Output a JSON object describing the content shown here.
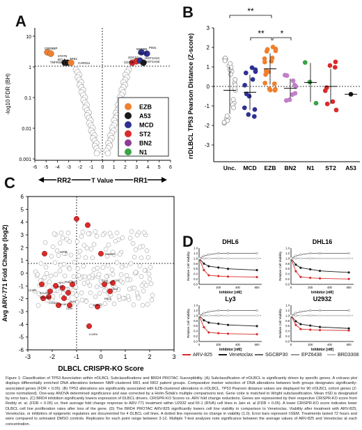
{
  "panels": {
    "A": {
      "label": "A",
      "ylabel": "-log10 FDR (BH)",
      "xlabel": "T Value",
      "ytick_labels": [
        "10",
        "1",
        "0.1",
        "0.01",
        "0.001"
      ],
      "xtick_labels": [
        "-6",
        "-5",
        "-4",
        "-3",
        "-2",
        "-1",
        "0",
        "1",
        "2",
        "3",
        "4",
        "5",
        "6"
      ],
      "arrow_left": "RR2",
      "arrow_right": "RR1",
      "gene_labels": [
        "CREBBP",
        "STAT6",
        "TNFRSF14",
        "BCL6",
        "TP53",
        "CARD11",
        "MYD88",
        "PIM1",
        "IGLL5",
        "SOCS1",
        "HIST1H1C",
        "HIST1H1E",
        "CD79B"
      ],
      "legend": [
        {
          "name": "EZB",
          "color": "#f07f2e"
        },
        {
          "name": "A53",
          "color": "#1a1a1a"
        },
        {
          "name": "MCD",
          "color": "#2e3192"
        },
        {
          "name": "ST2",
          "color": "#d92b2b"
        },
        {
          "name": "BN2",
          "color": "#8e3d96"
        },
        {
          "name": "N1",
          "color": "#3aa346"
        }
      ]
    },
    "B": {
      "label": "B",
      "ylabel": "rrDLBCL TP53 Pearson Distance (Z-score)",
      "ytick_labels": [
        "3",
        "2",
        "1",
        "0",
        "-1",
        "-2",
        "-3"
      ],
      "categories": [
        "Unc.",
        "MCD",
        "EZB",
        "BN2",
        "N1",
        "ST2",
        "A53"
      ],
      "sig1": "**",
      "sig2": "**",
      "sig3": "*"
    },
    "C": {
      "label": "C",
      "ylabel": "Avg ARV-771 Fold Change (log2)",
      "xlabel": "DLBCL CRISPR-KO Score",
      "ytick_labels": [
        "6",
        "5",
        "4",
        "3",
        "2",
        "1",
        "0",
        "-1",
        "-2",
        "-3",
        "-4",
        "-5",
        "-6"
      ],
      "xtick_labels": [
        "-3",
        "-2",
        "-1",
        "0",
        "1",
        "2",
        "3"
      ],
      "gene_labels": [
        "MTOR",
        "TCF3",
        "MYC",
        "PIM2",
        "CD79B",
        "IRF4",
        "POU2F2",
        "POU2AF1",
        "BLNK",
        "CD19",
        "CCND3",
        "PAX5",
        "IL10RA",
        "TOMM7A",
        "CD40",
        "IKZF1",
        "CD74",
        "IKZF3",
        "RELA",
        "BACH2"
      ]
    },
    "D": {
      "label": "D",
      "ylabel": "Relative Cell Viability",
      "xlabel": "Inhibitor [nM]",
      "subplots": [
        {
          "title": "DHL6"
        },
        {
          "title": "DHL16"
        },
        {
          "title": "Ly3"
        },
        {
          "title": "U2932"
        }
      ],
      "ytick_labels": [
        "1.4",
        "1.2",
        "1.0",
        "0.8",
        "0.6",
        "0.4",
        "0.2",
        "0.0"
      ],
      "xtick_labels": [
        "0",
        "200",
        "400",
        "600"
      ],
      "legend": [
        {
          "name": "ARV-825",
          "color": "#d92b2b"
        },
        {
          "name": "Venetoclax",
          "color": "#1a1a1a"
        },
        {
          "name": "SGCBP30",
          "color": "#666666"
        },
        {
          "name": "EPZ6438",
          "color": "#999999"
        },
        {
          "name": "BRD3308",
          "color": "#bbbbbb"
        }
      ]
    }
  },
  "chart_data": [
    {
      "type": "bar",
      "panel": "B",
      "categories": [
        "Unc.",
        "MCD",
        "EZB",
        "BN2",
        "N1",
        "ST2",
        "A53"
      ],
      "values": [
        -0.2,
        -0.3,
        0.9,
        -0.1,
        0.2,
        0.0,
        -0.4
      ],
      "ylim": [
        -3,
        3
      ],
      "ylabel": "rrDLBCL TP53 Pearson Distance (Z-score)"
    },
    {
      "type": "line",
      "panel": "D",
      "x": [
        0,
        50,
        100,
        200,
        300,
        600
      ],
      "series": [
        {
          "name": "ARV-825",
          "values": [
            1.0,
            0.55,
            0.35,
            0.32,
            0.3,
            0.28
          ]
        },
        {
          "name": "Venetoclax",
          "values": [
            1.0,
            0.8,
            0.7,
            0.65,
            0.6,
            0.55
          ]
        },
        {
          "name": "SGCBP30",
          "values": [
            1.0,
            1.1,
            1.15,
            1.2,
            1.2,
            1.2
          ]
        },
        {
          "name": "EPZ6438",
          "values": [
            1.0,
            1.0,
            1.0,
            1.0,
            1.0,
            1.0
          ]
        },
        {
          "name": "BRD3308",
          "values": [
            1.0,
            1.02,
            1.0,
            1.02,
            1.0,
            1.0
          ]
        }
      ],
      "ylim": [
        0,
        1.4
      ]
    }
  ],
  "caption": "Figure 1: Classification of TP53 Association within rrDLBCL Subclassifications and BRD4 PROTAC Susceptibility. (A) Subclassification of rrDLBCL is significantly driven by specific genes. A volcano plot displays differentially enriched DNA alterations between NMF-clustered RR1 and RR2 patient groups. Comparative marker selection of DNA alterations between both groups designates significantly-associated genes (FDR < 0.05). (B) TP53 alterations are significantly associated with EZB-clustered alterations in rrDLBCL. TP53 Pearson distance values are displayed for 90 rrDLBCL cohort genes (Z-score normalized). One-way ANOVA determined significance and was corrected by a Holm-Šídák's multiple comparisons test. Gene color is matched to Wright subclassification. Mean ±SD is designated by error bars. (C) BRD4 inhibition significantly lowers expression of DLBCL drivers. CRISPR-KO Scores vs. ARV fold change reductions. Genes are represented by their respective CRISPR-KO score from Reddy et. al. (FDR < 0.05) vs. their average fold change response to ARV-771 treatment within U2932 and RI-1 (RIVA) cell lines in Jain et. al (FDR < 0.05). A lower CRISPR-KO score indicates lower DLBCL cell line proliferation rates after loss of the gene. (D) The BRD4 PROTAC ARV-825 significantly lowers cell line viability in comparison to Venetoclax. Viability after treatment with ARV-825, Venetoclax, or inhibitors of epigenetic regulators are documented for 4 DLBCL cell lines. A dotted line represents no change in viability (1.0). Error bars represent ±SEM. Treatments lasted 72 hours and were compared to untreated DMSO controls. Replicates for each point range between 3-12. Multiple T-test analyses note significance between the average values of ARV-825 and Venetoclax at each concentration."
}
